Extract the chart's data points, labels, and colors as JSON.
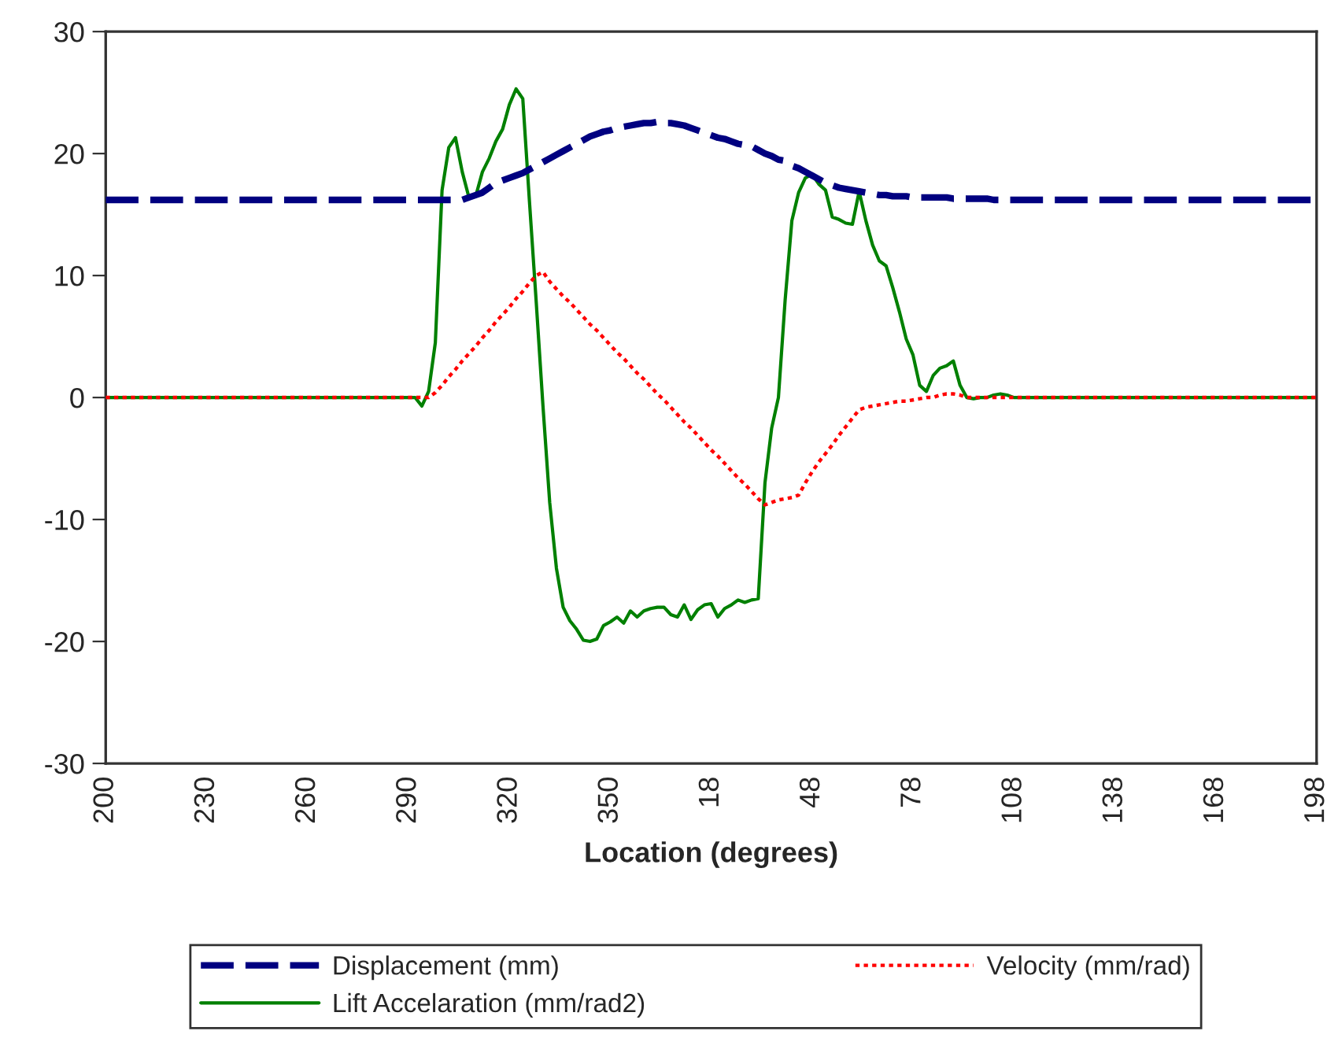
{
  "chart_data": {
    "type": "line",
    "categories": [
      "200",
      null,
      null,
      null,
      null,
      null,
      null,
      null,
      null,
      null,
      null,
      null,
      null,
      null,
      null,
      "230",
      null,
      null,
      null,
      null,
      null,
      null,
      null,
      null,
      null,
      null,
      null,
      null,
      null,
      null,
      "260",
      null,
      null,
      null,
      null,
      null,
      null,
      null,
      null,
      null,
      null,
      null,
      null,
      null,
      null,
      "290",
      null,
      null,
      null,
      null,
      null,
      null,
      null,
      null,
      null,
      null,
      null,
      null,
      null,
      null,
      "320",
      null,
      null,
      null,
      null,
      null,
      null,
      null,
      null,
      null,
      null,
      null,
      null,
      null,
      null,
      "350",
      null,
      null,
      null,
      null,
      null,
      null,
      null,
      null,
      null,
      null,
      null,
      null,
      null,
      null,
      "18",
      null,
      null,
      null,
      null,
      null,
      null,
      null,
      null,
      null,
      null,
      null,
      null,
      null,
      null,
      "48",
      null,
      null,
      null,
      null,
      null,
      null,
      null,
      null,
      null,
      null,
      null,
      null,
      null,
      null,
      "78",
      null,
      null,
      null,
      null,
      null,
      null,
      null,
      null,
      null,
      null,
      null,
      null,
      null,
      null,
      "108",
      null,
      null,
      null,
      null,
      null,
      null,
      null,
      null,
      null,
      null,
      null,
      null,
      null,
      null,
      "138",
      null,
      null,
      null,
      null,
      null,
      null,
      null,
      null,
      null,
      null,
      null,
      null,
      null,
      null,
      "168",
      null,
      null,
      null,
      null,
      null,
      null,
      null,
      null,
      null,
      null,
      null,
      null,
      null,
      null,
      "198"
    ],
    "xlabel": "Location (degrees)",
    "ylim": [
      -30,
      30
    ],
    "yticks": [
      -30,
      -20,
      -10,
      0,
      10,
      20,
      30
    ],
    "grid": false,
    "legend": "bottom",
    "marker": "none",
    "series": [
      {
        "name": "Displacement (mm)",
        "color": "#000080",
        "line_style": "dashed",
        "values": [
          16.2,
          16.2,
          16.2,
          16.2,
          16.2,
          16.2,
          16.2,
          16.2,
          16.2,
          16.2,
          16.2,
          16.2,
          16.2,
          16.2,
          16.2,
          16.2,
          16.2,
          16.2,
          16.2,
          16.2,
          16.2,
          16.2,
          16.2,
          16.2,
          16.2,
          16.2,
          16.2,
          16.2,
          16.2,
          16.2,
          16.2,
          16.2,
          16.2,
          16.2,
          16.2,
          16.2,
          16.2,
          16.2,
          16.2,
          16.2,
          16.2,
          16.2,
          16.2,
          16.2,
          16.2,
          16.2,
          16.2,
          16.2,
          16.2,
          16.2,
          16.2,
          16.2,
          16.2,
          16.2,
          16.4,
          16.6,
          16.8,
          17.2,
          17.6,
          17.8,
          18.0,
          18.2,
          18.4,
          18.7,
          19.0,
          19.3,
          19.6,
          19.9,
          20.2,
          20.5,
          20.8,
          21.1,
          21.4,
          21.6,
          21.8,
          21.9,
          22.1,
          22.2,
          22.3,
          22.4,
          22.5,
          22.5,
          22.6,
          22.5,
          22.5,
          22.4,
          22.3,
          22.1,
          21.9,
          21.7,
          21.5,
          21.3,
          21.2,
          21.0,
          20.8,
          20.7,
          20.6,
          20.3,
          20.0,
          19.8,
          19.5,
          19.4,
          19.0,
          18.8,
          18.5,
          18.2,
          17.9,
          17.6,
          17.4,
          17.2,
          17.1,
          17.0,
          16.9,
          16.8,
          16.7,
          16.6,
          16.6,
          16.5,
          16.5,
          16.5,
          16.4,
          16.4,
          16.4,
          16.4,
          16.4,
          16.4,
          16.3,
          16.3,
          16.3,
          16.3,
          16.3,
          16.3,
          16.2,
          16.2,
          16.2,
          16.2,
          16.2,
          16.2,
          16.2,
          16.2,
          16.2,
          16.2,
          16.2,
          16.2,
          16.2,
          16.2,
          16.2,
          16.2,
          16.2,
          16.2,
          16.2,
          16.2,
          16.2,
          16.2,
          16.2,
          16.2,
          16.2,
          16.2,
          16.2,
          16.2,
          16.2,
          16.2,
          16.2,
          16.2,
          16.2,
          16.2,
          16.2,
          16.2,
          16.2,
          16.2,
          16.2,
          16.2,
          16.2,
          16.2,
          16.2,
          16.2,
          16.2,
          16.2,
          16.2,
          16.2,
          16.2
        ]
      },
      {
        "name": "Velocity (mm/rad)",
        "color": "#ff0000",
        "line_style": "dotted",
        "values": [
          0,
          0,
          0,
          0,
          0,
          0,
          0,
          0,
          0,
          0,
          0,
          0,
          0,
          0,
          0,
          0,
          0,
          0,
          0,
          0,
          0,
          0,
          0,
          0,
          0,
          0,
          0,
          0,
          0,
          0,
          0,
          0,
          0,
          0,
          0,
          0,
          0,
          0,
          0,
          0,
          0,
          0,
          0,
          0,
          0,
          0,
          0,
          0,
          0,
          0.4,
          1.0,
          1.7,
          2.3,
          3.0,
          3.6,
          4.2,
          4.9,
          5.5,
          6.2,
          6.8,
          7.4,
          8.1,
          8.7,
          9.4,
          10.0,
          10.3,
          9.5,
          8.9,
          8.3,
          7.8,
          7.2,
          6.6,
          6.0,
          5.5,
          4.9,
          4.3,
          3.7,
          3.2,
          2.6,
          2.0,
          1.5,
          0.9,
          0.3,
          -0.2,
          -0.8,
          -1.4,
          -2.0,
          -2.5,
          -3.1,
          -3.7,
          -4.3,
          -4.8,
          -5.4,
          -6.0,
          -6.6,
          -7.1,
          -7.7,
          -8.3,
          -8.8,
          -8.6,
          -8.4,
          -8.3,
          -8.2,
          -8.0,
          -7.0,
          -6.1,
          -5.3,
          -4.6,
          -3.9,
          -3.1,
          -2.4,
          -1.7,
          -1.0,
          -0.8,
          -0.7,
          -0.6,
          -0.5,
          -0.4,
          -0.3,
          -0.3,
          -0.2,
          -0.1,
          0,
          0,
          0.2,
          0.3,
          0.3,
          0.2,
          0,
          0,
          0,
          0,
          0,
          0,
          0,
          0,
          0,
          0,
          0,
          0,
          0,
          0,
          0,
          0,
          0,
          0,
          0,
          0,
          0,
          0,
          0,
          0,
          0,
          0,
          0,
          0,
          0,
          0,
          0,
          0,
          0,
          0,
          0,
          0,
          0,
          0,
          0,
          0,
          0,
          0,
          0,
          0,
          0,
          0,
          0,
          0,
          0,
          0,
          0,
          0,
          0
        ]
      },
      {
        "name": "Lift Accelaration (mm/rad2)",
        "color": "#008000",
        "line_style": "solid",
        "values": [
          0,
          0,
          0,
          0,
          0,
          0,
          0,
          0,
          0,
          0,
          0,
          0,
          0,
          0,
          0,
          0,
          0,
          0,
          0,
          0,
          0,
          0,
          0,
          0,
          0,
          0,
          0,
          0,
          0,
          0,
          0,
          0,
          0,
          0,
          0,
          0,
          0,
          0,
          0,
          0,
          0,
          0,
          0,
          0,
          0,
          0,
          0,
          -0.7,
          0.5,
          4.5,
          17,
          20.5,
          21.3,
          18.5,
          16.4,
          16.5,
          18.5,
          19.6,
          21,
          22,
          24,
          25.3,
          24.5,
          16,
          7.8,
          -0.7,
          -8.6,
          -14,
          -17.2,
          -18.3,
          -19,
          -19.9,
          -20,
          -19.8,
          -18.7,
          -18.4,
          -18,
          -18.5,
          -17.5,
          -18,
          -17.5,
          -17.3,
          -17.2,
          -17.2,
          -17.8,
          -18,
          -17,
          -18.2,
          -17.4,
          -17,
          -16.9,
          -18,
          -17.3,
          -17,
          -16.6,
          -16.8,
          -16.6,
          -16.5,
          -7,
          -2.5,
          0,
          8,
          14.5,
          16.8,
          18,
          18.3,
          17.5,
          17,
          14.8,
          14.6,
          14.3,
          14.2,
          16.9,
          14.5,
          12.5,
          11.2,
          10.8,
          9,
          7,
          4.8,
          3.5,
          1,
          0.5,
          1.8,
          2.4,
          2.6,
          3,
          1,
          0,
          -0.1,
          0,
          0,
          0.2,
          0.3,
          0.2,
          0,
          0,
          0,
          0,
          0,
          0,
          0,
          0,
          0,
          0,
          0,
          0,
          0,
          0,
          0,
          0,
          0,
          0,
          0,
          0,
          0,
          0,
          0,
          0,
          0,
          0,
          0,
          0,
          0,
          0,
          0,
          0,
          0,
          0,
          0,
          0,
          0,
          0,
          0,
          0,
          0,
          0,
          0,
          0,
          0,
          0
        ]
      }
    ]
  }
}
